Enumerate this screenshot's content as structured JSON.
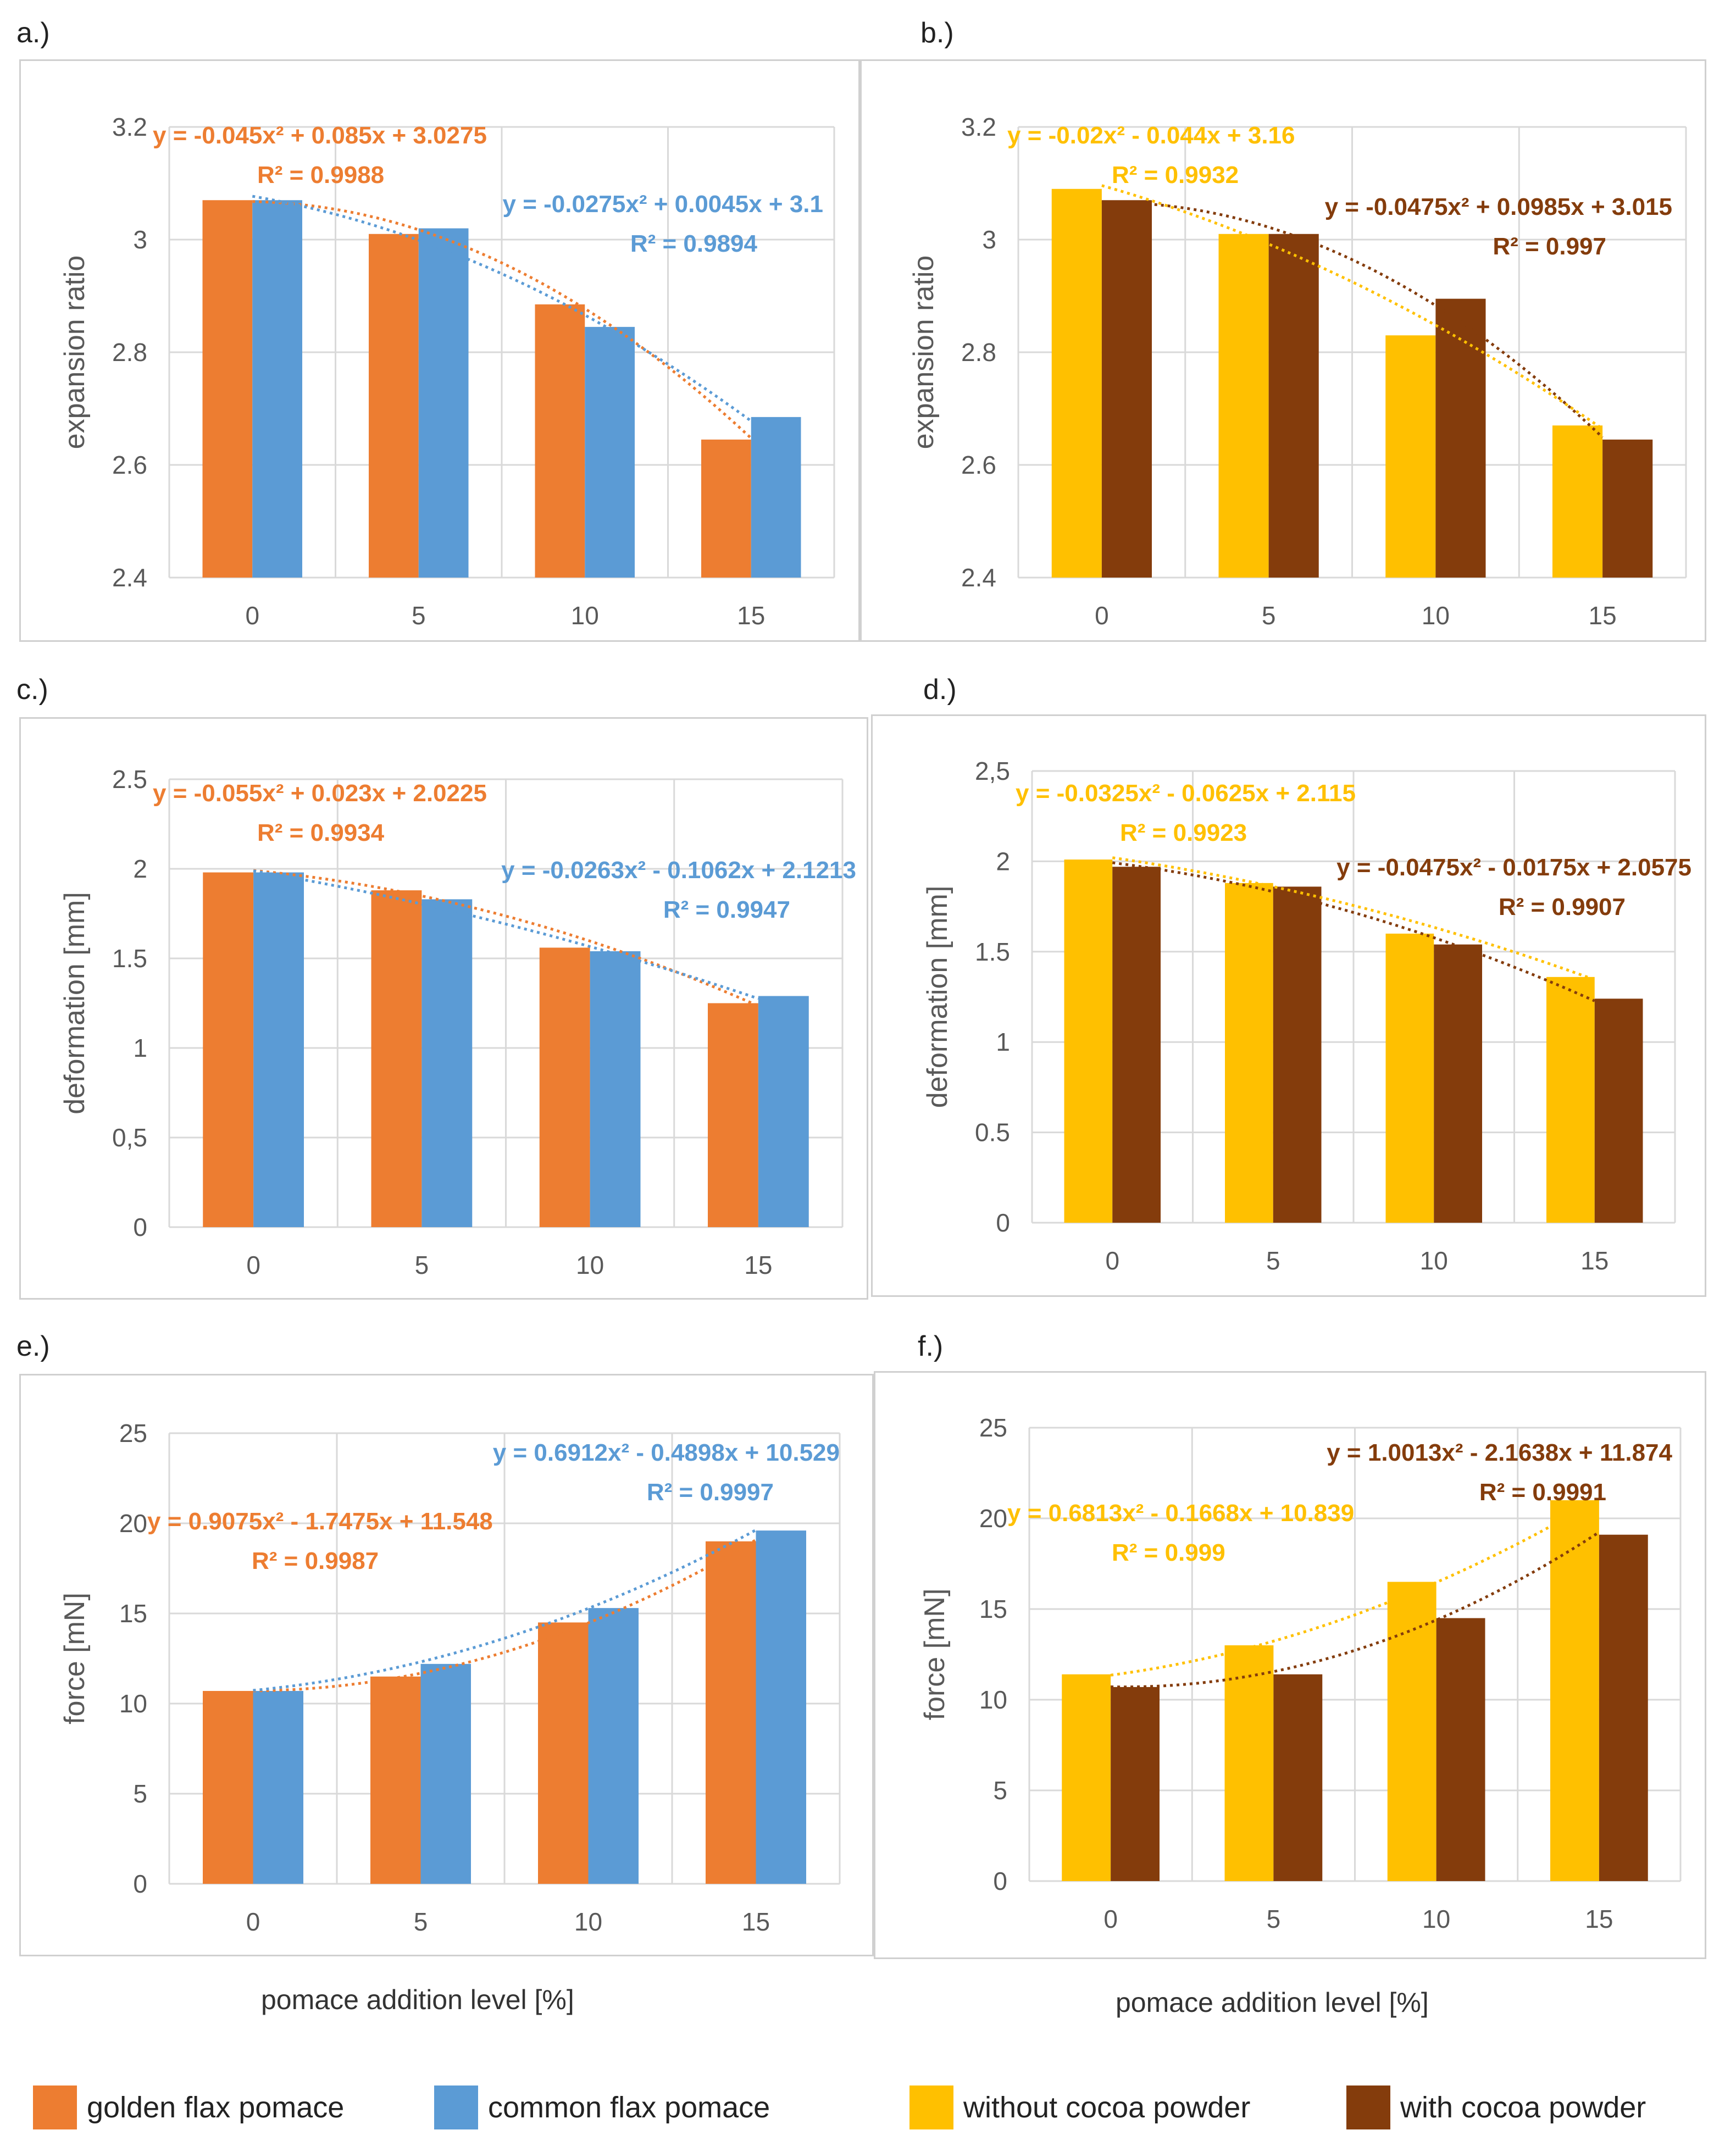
{
  "xlabels": [
    "pomace addition level [%]",
    "pomace addition level [%]"
  ],
  "legend": [
    {
      "label": "golden flax pomace",
      "color": "#ED7D31"
    },
    {
      "label": "common flax pomace",
      "color": "#5B9BD5"
    },
    {
      "label": "without cocoa powder",
      "color": "#FFC000"
    },
    {
      "label": "with cocoa powder",
      "color": "#843C0C"
    }
  ],
  "chart_data": [
    {
      "panel": "a.)",
      "type": "bar",
      "ylabel": "expansion ratio",
      "categories": [
        "0",
        "5",
        "10",
        "15"
      ],
      "ylim": [
        2.4,
        3.2
      ],
      "yticks": [
        "2.4",
        "2.6",
        "2.8",
        "3",
        "3.2"
      ],
      "series": [
        {
          "name": "golden flax pomace",
          "color": "#ED7D31",
          "values": [
            3.07,
            3.01,
            2.885,
            2.645
          ]
        },
        {
          "name": "common flax pomace",
          "color": "#5B9BD5",
          "values": [
            3.07,
            3.02,
            2.845,
            2.685
          ]
        }
      ],
      "trendlines": [
        {
          "color": "#ED7D31",
          "coef": [
            -0.045,
            0.085,
            3.0275
          ],
          "equation": "y = -0.045x² + 0.085x + 3.0275",
          "r2": "R² = 0.9988",
          "anchor": "left"
        },
        {
          "color": "#5B9BD5",
          "coef": [
            -0.0275,
            0.0045,
            3.1
          ],
          "equation": "y = -0.0275x² + 0.0045x + 3.1",
          "r2": "R² = 0.9894",
          "anchor": "right"
        }
      ]
    },
    {
      "panel": "b.)",
      "type": "bar",
      "ylabel": "expansion ratio",
      "categories": [
        "0",
        "5",
        "10",
        "15"
      ],
      "ylim": [
        2.4,
        3.2
      ],
      "yticks": [
        "2.4",
        "2.6",
        "2.8",
        "3",
        "3.2"
      ],
      "series": [
        {
          "name": "without cocoa powder",
          "color": "#FFC000",
          "values": [
            3.09,
            3.01,
            2.83,
            2.67
          ]
        },
        {
          "name": "with cocoa powder",
          "color": "#843C0C",
          "values": [
            3.07,
            3.01,
            2.895,
            2.645
          ]
        }
      ],
      "trendlines": [
        {
          "color": "#FFC000",
          "coef": [
            -0.02,
            -0.044,
            3.16
          ],
          "equation": "y = -0.02x² - 0.044x + 3.16",
          "r2": "R² = 0.9932",
          "anchor": "left"
        },
        {
          "color": "#843C0C",
          "coef": [
            -0.0475,
            0.0985,
            3.015
          ],
          "equation": "y = -0.0475x² + 0.0985x + 3.015",
          "r2": "R² = 0.997",
          "anchor": "right"
        }
      ]
    },
    {
      "panel": "c.)",
      "type": "bar",
      "ylabel": "deformation [mm]",
      "categories": [
        "0",
        "5",
        "10",
        "15"
      ],
      "ylim": [
        0,
        2.5
      ],
      "yticks": [
        "0",
        "0,5",
        "1",
        "1.5",
        "2",
        "2.5"
      ],
      "series": [
        {
          "name": "golden flax pomace",
          "color": "#ED7D31",
          "values": [
            1.98,
            1.88,
            1.56,
            1.25
          ]
        },
        {
          "name": "common flax pomace",
          "color": "#5B9BD5",
          "values": [
            1.98,
            1.83,
            1.54,
            1.29
          ]
        }
      ],
      "trendlines": [
        {
          "color": "#ED7D31",
          "coef": [
            -0.055,
            0.023,
            2.0225
          ],
          "equation": "y = -0.055x² + 0.023x + 2.0225",
          "r2": "R² = 0.9934",
          "anchor": "left"
        },
        {
          "color": "#5B9BD5",
          "coef": [
            -0.0263,
            -0.1062,
            2.1213
          ],
          "equation": "y = -0.0263x² - 0.1062x + 2.1213",
          "r2": "R² = 0.9947",
          "anchor": "right"
        }
      ]
    },
    {
      "panel": "d.)",
      "type": "bar",
      "ylabel": "deformation [mm]",
      "categories": [
        "0",
        "5",
        "10",
        "15"
      ],
      "ylim": [
        0,
        2.5
      ],
      "yticks": [
        "0",
        "0.5",
        "1",
        "1.5",
        "2",
        "2,5"
      ],
      "series": [
        {
          "name": "without cocoa powder",
          "color": "#FFC000",
          "values": [
            2.01,
            1.88,
            1.6,
            1.36
          ]
        },
        {
          "name": "with cocoa powder",
          "color": "#843C0C",
          "values": [
            1.97,
            1.86,
            1.54,
            1.24
          ]
        }
      ],
      "trendlines": [
        {
          "color": "#FFC000",
          "coef": [
            -0.0325,
            -0.0625,
            2.115
          ],
          "equation": "y = -0.0325x² - 0.0625x + 2.115",
          "r2": "R² = 0.9923",
          "anchor": "left"
        },
        {
          "color": "#843C0C",
          "coef": [
            -0.0475,
            -0.0175,
            2.0575
          ],
          "equation": "y = -0.0475x² - 0.0175x + 2.0575",
          "r2": "R² = 0.9907",
          "anchor": "right"
        }
      ]
    },
    {
      "panel": "e.)",
      "type": "bar",
      "ylabel": "force [mN]",
      "categories": [
        "0",
        "5",
        "10",
        "15"
      ],
      "ylim": [
        0,
        25
      ],
      "yticks": [
        "0",
        "5",
        "10",
        "15",
        "20",
        "25"
      ],
      "series": [
        {
          "name": "golden flax pomace",
          "color": "#ED7D31",
          "values": [
            10.7,
            11.5,
            14.5,
            19.0
          ]
        },
        {
          "name": "common flax pomace",
          "color": "#5B9BD5",
          "values": [
            10.7,
            12.2,
            15.3,
            19.6
          ]
        }
      ],
      "trendlines": [
        {
          "color": "#ED7D31",
          "coef": [
            0.9075,
            -1.7475,
            11.548
          ],
          "equation": "y = 0.9075x² - 1.7475x + 11.548",
          "r2": "R² = 0.9987",
          "anchor": "left"
        },
        {
          "color": "#5B9BD5",
          "coef": [
            0.6912,
            -0.4898,
            10.529
          ],
          "equation": "y = 0.6912x² - 0.4898x + 10.529",
          "r2": "R² = 0.9997",
          "anchor": "right"
        }
      ]
    },
    {
      "panel": "f.)",
      "type": "bar",
      "ylabel": "force [mN]",
      "categories": [
        "0",
        "5",
        "10",
        "15"
      ],
      "ylim": [
        0,
        25
      ],
      "yticks": [
        "0",
        "5",
        "10",
        "15",
        "20",
        "25"
      ],
      "series": [
        {
          "name": "without cocoa powder",
          "color": "#FFC000",
          "values": [
            11.4,
            13.0,
            16.5,
            21.0
          ]
        },
        {
          "name": "with cocoa powder",
          "color": "#843C0C",
          "values": [
            10.7,
            11.4,
            14.5,
            19.1
          ]
        }
      ],
      "trendlines": [
        {
          "color": "#FFC000",
          "coef": [
            0.6813,
            -0.1668,
            10.839
          ],
          "equation": "y = 0.6813x² - 0.1668x + 10.839",
          "r2": "R² = 0.999",
          "anchor": "left"
        },
        {
          "color": "#843C0C",
          "coef": [
            1.0013,
            -2.1638,
            11.874
          ],
          "equation": "y = 1.0013x² - 2.1638x + 11.874",
          "r2": "R² = 0.9991",
          "anchor": "right"
        }
      ]
    }
  ]
}
